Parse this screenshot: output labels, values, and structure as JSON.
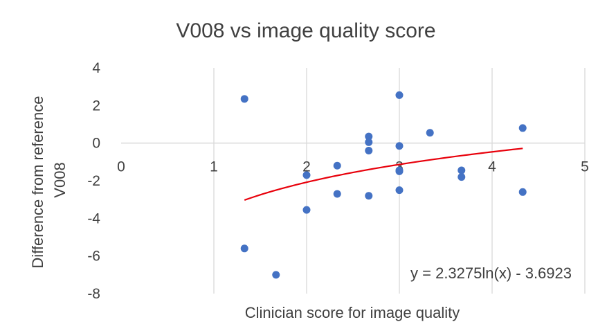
{
  "chart_data": {
    "type": "scatter",
    "title": "V008 vs image quality score",
    "xlabel": "Clinician score for image quality",
    "ylabel": [
      "Difference from reference",
      "V008"
    ],
    "xlim": [
      0,
      5
    ],
    "ylim": [
      -8,
      4
    ],
    "x_ticks": [
      "0",
      "1",
      "2",
      "3",
      "4",
      "5"
    ],
    "y_ticks": [
      "4",
      "2",
      "0",
      "-2",
      "-4",
      "-6",
      "-8"
    ],
    "grid": "vertical",
    "points": [
      {
        "x": 1.33,
        "y": 2.35
      },
      {
        "x": 1.33,
        "y": -5.6
      },
      {
        "x": 1.67,
        "y": -7.0
      },
      {
        "x": 2.0,
        "y": -1.7
      },
      {
        "x": 2.0,
        "y": -3.55
      },
      {
        "x": 2.33,
        "y": -1.2
      },
      {
        "x": 2.33,
        "y": -2.7
      },
      {
        "x": 2.67,
        "y": 0.35
      },
      {
        "x": 2.67,
        "y": 0.05
      },
      {
        "x": 2.67,
        "y": -0.4
      },
      {
        "x": 2.67,
        "y": -2.8
      },
      {
        "x": 3.0,
        "y": 2.55
      },
      {
        "x": 3.0,
        "y": -0.15
      },
      {
        "x": 3.0,
        "y": -1.45
      },
      {
        "x": 3.0,
        "y": -1.5
      },
      {
        "x": 3.0,
        "y": -2.5
      },
      {
        "x": 3.33,
        "y": 0.55
      },
      {
        "x": 3.67,
        "y": -1.45
      },
      {
        "x": 3.67,
        "y": -1.8
      },
      {
        "x": 4.33,
        "y": 0.8
      },
      {
        "x": 4.33,
        "y": -2.6
      }
    ],
    "trendline": {
      "type": "log",
      "a": 2.3275,
      "b": -3.6923,
      "x_range": [
        1.33,
        4.33
      ],
      "label": "y = 2.3275ln(x) - 3.6923",
      "color": "#e8000b"
    },
    "marker_color": "#4472c4",
    "gridline_color": "#d9d9d9",
    "text_color": "#404040"
  }
}
